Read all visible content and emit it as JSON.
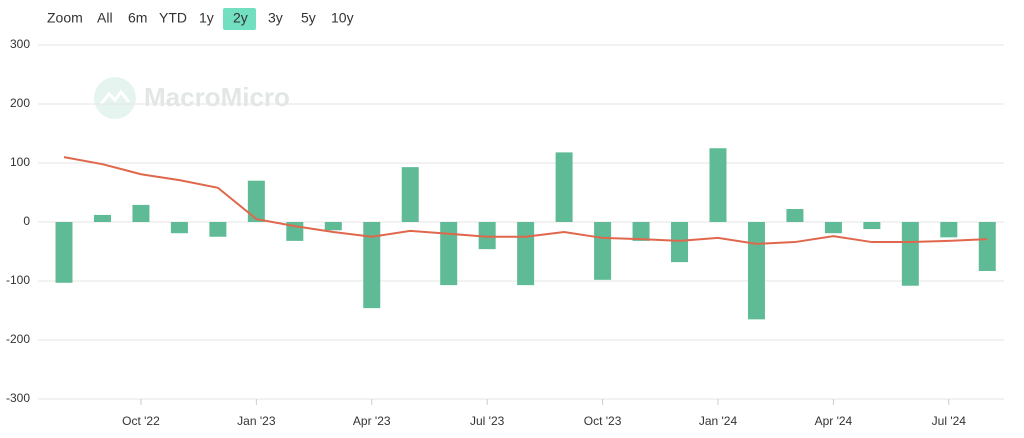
{
  "zoom_label": "Zoom",
  "buttons": [
    "All",
    "6m",
    "YTD",
    "1y",
    "2y",
    "3y",
    "5y",
    "10y"
  ],
  "selected_button": 4,
  "watermark": "MacroMicro",
  "chart_data": {
    "type": "bar",
    "categories": [
      null,
      null,
      "Oct '22",
      null,
      null,
      "Jan '23",
      null,
      null,
      "Apr '23",
      null,
      null,
      "Jul '23",
      null,
      null,
      "Oct '23",
      null,
      null,
      "Jan '24",
      null,
      null,
      "Apr '24",
      null,
      null,
      "Jul '24",
      null
    ],
    "series": [
      {
        "type": "bar",
        "color": "#5fbb96",
        "values": [
          -103,
          12,
          29,
          -19,
          -25,
          70,
          -32,
          -14,
          -146,
          93,
          -107,
          -46,
          -107,
          118,
          -98,
          -32,
          -68,
          125,
          -165,
          22,
          -19,
          -12,
          -108,
          -26,
          -83
        ]
      },
      {
        "type": "line",
        "color": "#e0674c",
        "values": [
          110,
          98,
          81,
          71,
          58,
          5,
          -7,
          -17,
          -25,
          -15,
          -20,
          -25,
          -25,
          -17,
          -27,
          -29,
          -32,
          -27,
          -37,
          -34,
          -24,
          -34,
          -34,
          -32,
          -29
        ]
      }
    ],
    "ylim": [
      -300,
      300
    ],
    "yticks": [
      300,
      200,
      100,
      0,
      -100,
      -200,
      -300
    ],
    "grid": true
  }
}
